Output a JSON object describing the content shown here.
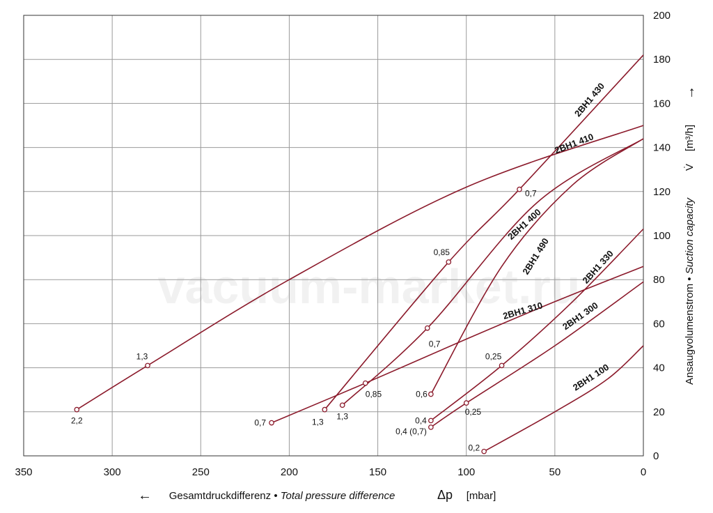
{
  "chart_data": {
    "type": "line",
    "x_axis": {
      "reversed": true,
      "xlim": [
        0,
        350
      ],
      "ticks": [
        350,
        300,
        250,
        200,
        150,
        100,
        50,
        0
      ],
      "label_de": "Gesamtdruckdifferenz",
      "label_sep": "•",
      "label_en": "Total pressure difference",
      "label_symbol": "Δp",
      "label_unit": "[mbar]",
      "arrow": "←"
    },
    "y_axis": {
      "position": "right",
      "ylim": [
        0,
        200
      ],
      "ticks": [
        0,
        20,
        40,
        60,
        80,
        100,
        120,
        140,
        160,
        180,
        200
      ],
      "label_de": "Ansaugvolumenstrom",
      "label_sep": "•",
      "label_en": "Suction capacity",
      "label_symbol": "V̇",
      "label_unit": "[m³/h]",
      "arrow": "→"
    },
    "grid": true,
    "line_color": "#8b1a2b",
    "watermark": "vacuum-market.ru",
    "series": [
      {
        "name": "2BH1 430",
        "points": [
          [
            180,
            21
          ],
          [
            110,
            88
          ],
          [
            70,
            121
          ],
          [
            0,
            182
          ]
        ],
        "markers": [
          {
            "x": 180,
            "y": 21,
            "label": "1,3"
          },
          {
            "x": 110,
            "y": 88,
            "label": "0,85"
          },
          {
            "x": 70,
            "y": 121,
            "label": "0,7"
          }
        ]
      },
      {
        "name": "2BH1 410",
        "points": [
          [
            320,
            21
          ],
          [
            280,
            41
          ],
          [
            200,
            80
          ],
          [
            100,
            122
          ],
          [
            0,
            150
          ]
        ],
        "markers": [
          {
            "x": 320,
            "y": 21,
            "label": "2,2"
          },
          {
            "x": 280,
            "y": 41,
            "label": "1,3"
          }
        ]
      },
      {
        "name": "2BH1 400",
        "points": [
          [
            170,
            23
          ],
          [
            122,
            58
          ],
          [
            60,
            115
          ],
          [
            0,
            144
          ]
        ],
        "markers": [
          {
            "x": 170,
            "y": 23,
            "label": "1,3"
          },
          {
            "x": 122,
            "y": 58,
            "label": "0,7"
          }
        ]
      },
      {
        "name": "2BH1 490",
        "points": [
          [
            120,
            28
          ],
          [
            80,
            86
          ],
          [
            40,
            123
          ],
          [
            0,
            144
          ]
        ],
        "markers": [
          {
            "x": 120,
            "y": 28,
            "label": "0,6"
          }
        ]
      },
      {
        "name": "2BH1 330",
        "points": [
          [
            120,
            16
          ],
          [
            80,
            41
          ],
          [
            40,
            70
          ],
          [
            0,
            103
          ]
        ],
        "markers": [
          {
            "x": 120,
            "y": 16,
            "label": "0,4"
          },
          {
            "x": 80,
            "y": 41,
            "label": "0,25"
          }
        ]
      },
      {
        "name": "2BH1 310",
        "points": [
          [
            210,
            15
          ],
          [
            157,
            33
          ],
          [
            100,
            53
          ],
          [
            50,
            70
          ],
          [
            0,
            86
          ]
        ],
        "markers": [
          {
            "x": 210,
            "y": 15,
            "label": "0,7"
          },
          {
            "x": 157,
            "y": 33,
            "label": "0,85"
          }
        ]
      },
      {
        "name": "2BH1 300",
        "points": [
          [
            120,
            13
          ],
          [
            100,
            24
          ],
          [
            50,
            50
          ],
          [
            0,
            79
          ]
        ],
        "markers": [
          {
            "x": 120,
            "y": 13,
            "label": "0,4 (0,7)"
          },
          {
            "x": 100,
            "y": 24,
            "label": "0,25"
          }
        ]
      },
      {
        "name": "2BH1 100",
        "points": [
          [
            90,
            2
          ],
          [
            50,
            20
          ],
          [
            20,
            35
          ],
          [
            0,
            50
          ]
        ],
        "markers": [
          {
            "x": 90,
            "y": 2,
            "label": "0,2"
          }
        ]
      }
    ]
  }
}
